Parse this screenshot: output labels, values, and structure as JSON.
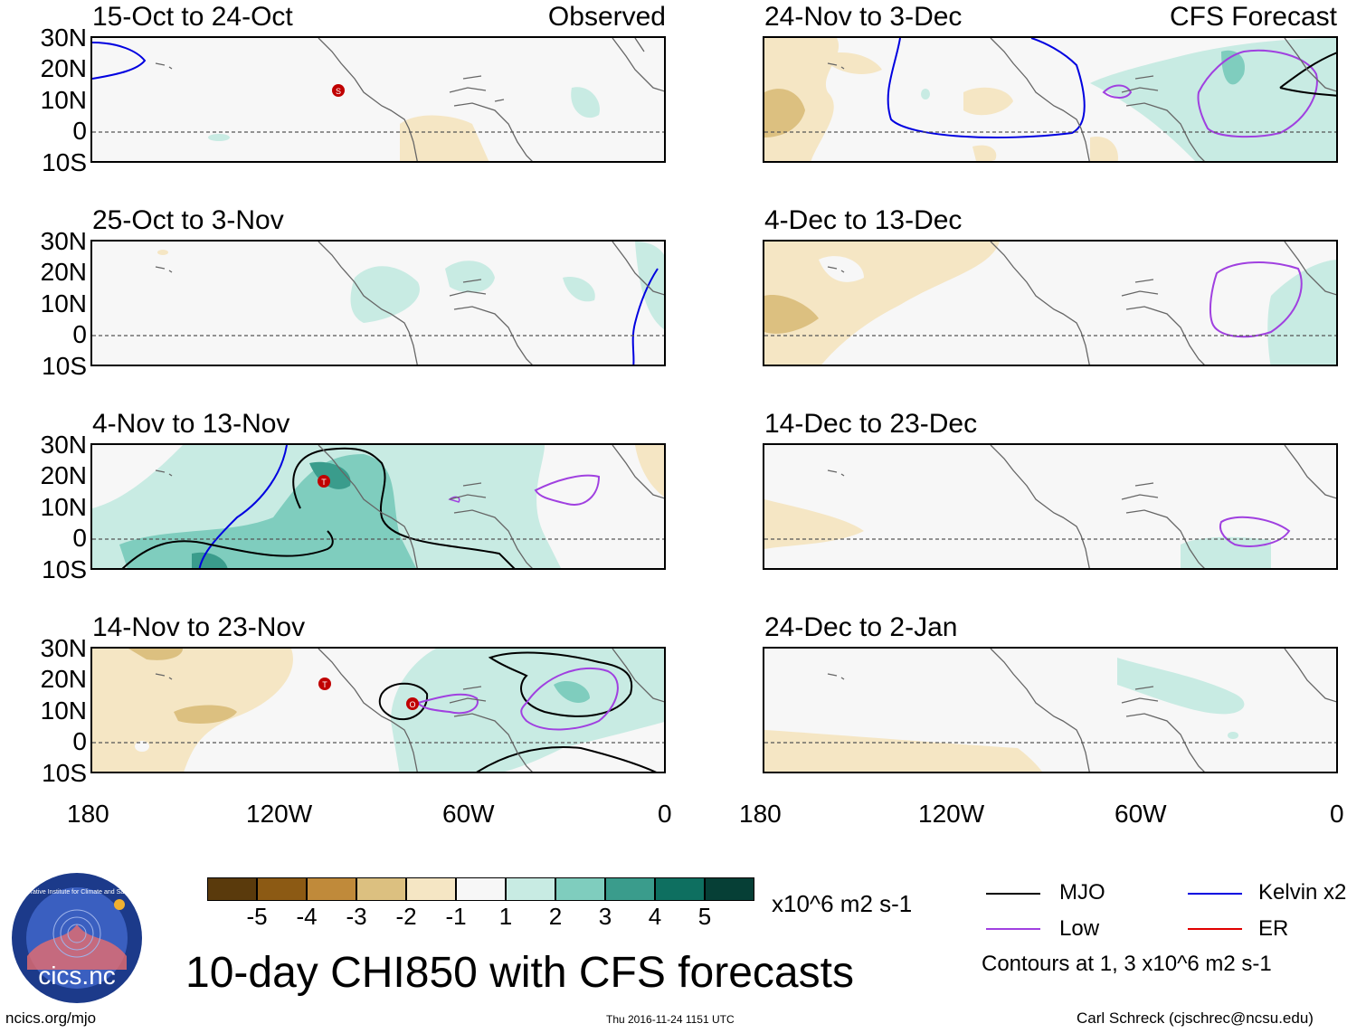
{
  "panels": [
    {
      "title": "15-Oct to 24-Oct",
      "label": "Observed"
    },
    {
      "title": "25-Oct to 3-Nov",
      "label": ""
    },
    {
      "title": "4-Nov to 13-Nov",
      "label": ""
    },
    {
      "title": "14-Nov to 23-Nov",
      "label": ""
    },
    {
      "title": "24-Nov to 3-Dec",
      "label": "CFS Forecast"
    },
    {
      "title": "4-Dec to 13-Dec",
      "label": ""
    },
    {
      "title": "14-Dec to 23-Dec",
      "label": ""
    },
    {
      "title": "24-Dec to 2-Jan",
      "label": ""
    }
  ],
  "lat_ticks": [
    "30N",
    "20N",
    "10N",
    "0",
    "10S"
  ],
  "lon_ticks": [
    "180",
    "120W",
    "60W",
    "0"
  ],
  "storm_markers": [
    {
      "panel": 0,
      "letter": "S"
    },
    {
      "panel": 2,
      "letter": "T"
    },
    {
      "panel": 3,
      "letter": "T"
    },
    {
      "panel": 3,
      "letter": "O"
    }
  ],
  "colorbar": {
    "colors": [
      "#5a3a0c",
      "#8c5a14",
      "#c08a3a",
      "#dcc080",
      "#f5e6c4",
      "#f7f7f7",
      "#c8ebe3",
      "#7fcdbe",
      "#3a9c8c",
      "#0e6f60",
      "#063f36"
    ],
    "labels": [
      "-5",
      "-4",
      "-3",
      "-2",
      "-1",
      "1",
      "2",
      "3",
      "4",
      "5"
    ],
    "units": "x10^6 m2 s-1"
  },
  "legend": {
    "items": [
      {
        "name": "MJO",
        "color": "#000000"
      },
      {
        "name": "Kelvin x2",
        "color": "#0000e0"
      },
      {
        "name": "Low",
        "color": "#a040e0"
      },
      {
        "name": "ER",
        "color": "#e00000"
      }
    ],
    "note": "Contours at 1, 3 x10^6 m2 s-1"
  },
  "main_title": "10-day CHI850 with CFS forecasts",
  "logo_text": "cics.nc",
  "logo_ring_text": "Cooperative Institute for Climate and Satellites",
  "footer": {
    "left": "ncics.org/mjo",
    "center": "Thu 2016-11-24 1151 UTC",
    "right": "Carl Schreck (cjschrec@ncsu.edu)"
  }
}
